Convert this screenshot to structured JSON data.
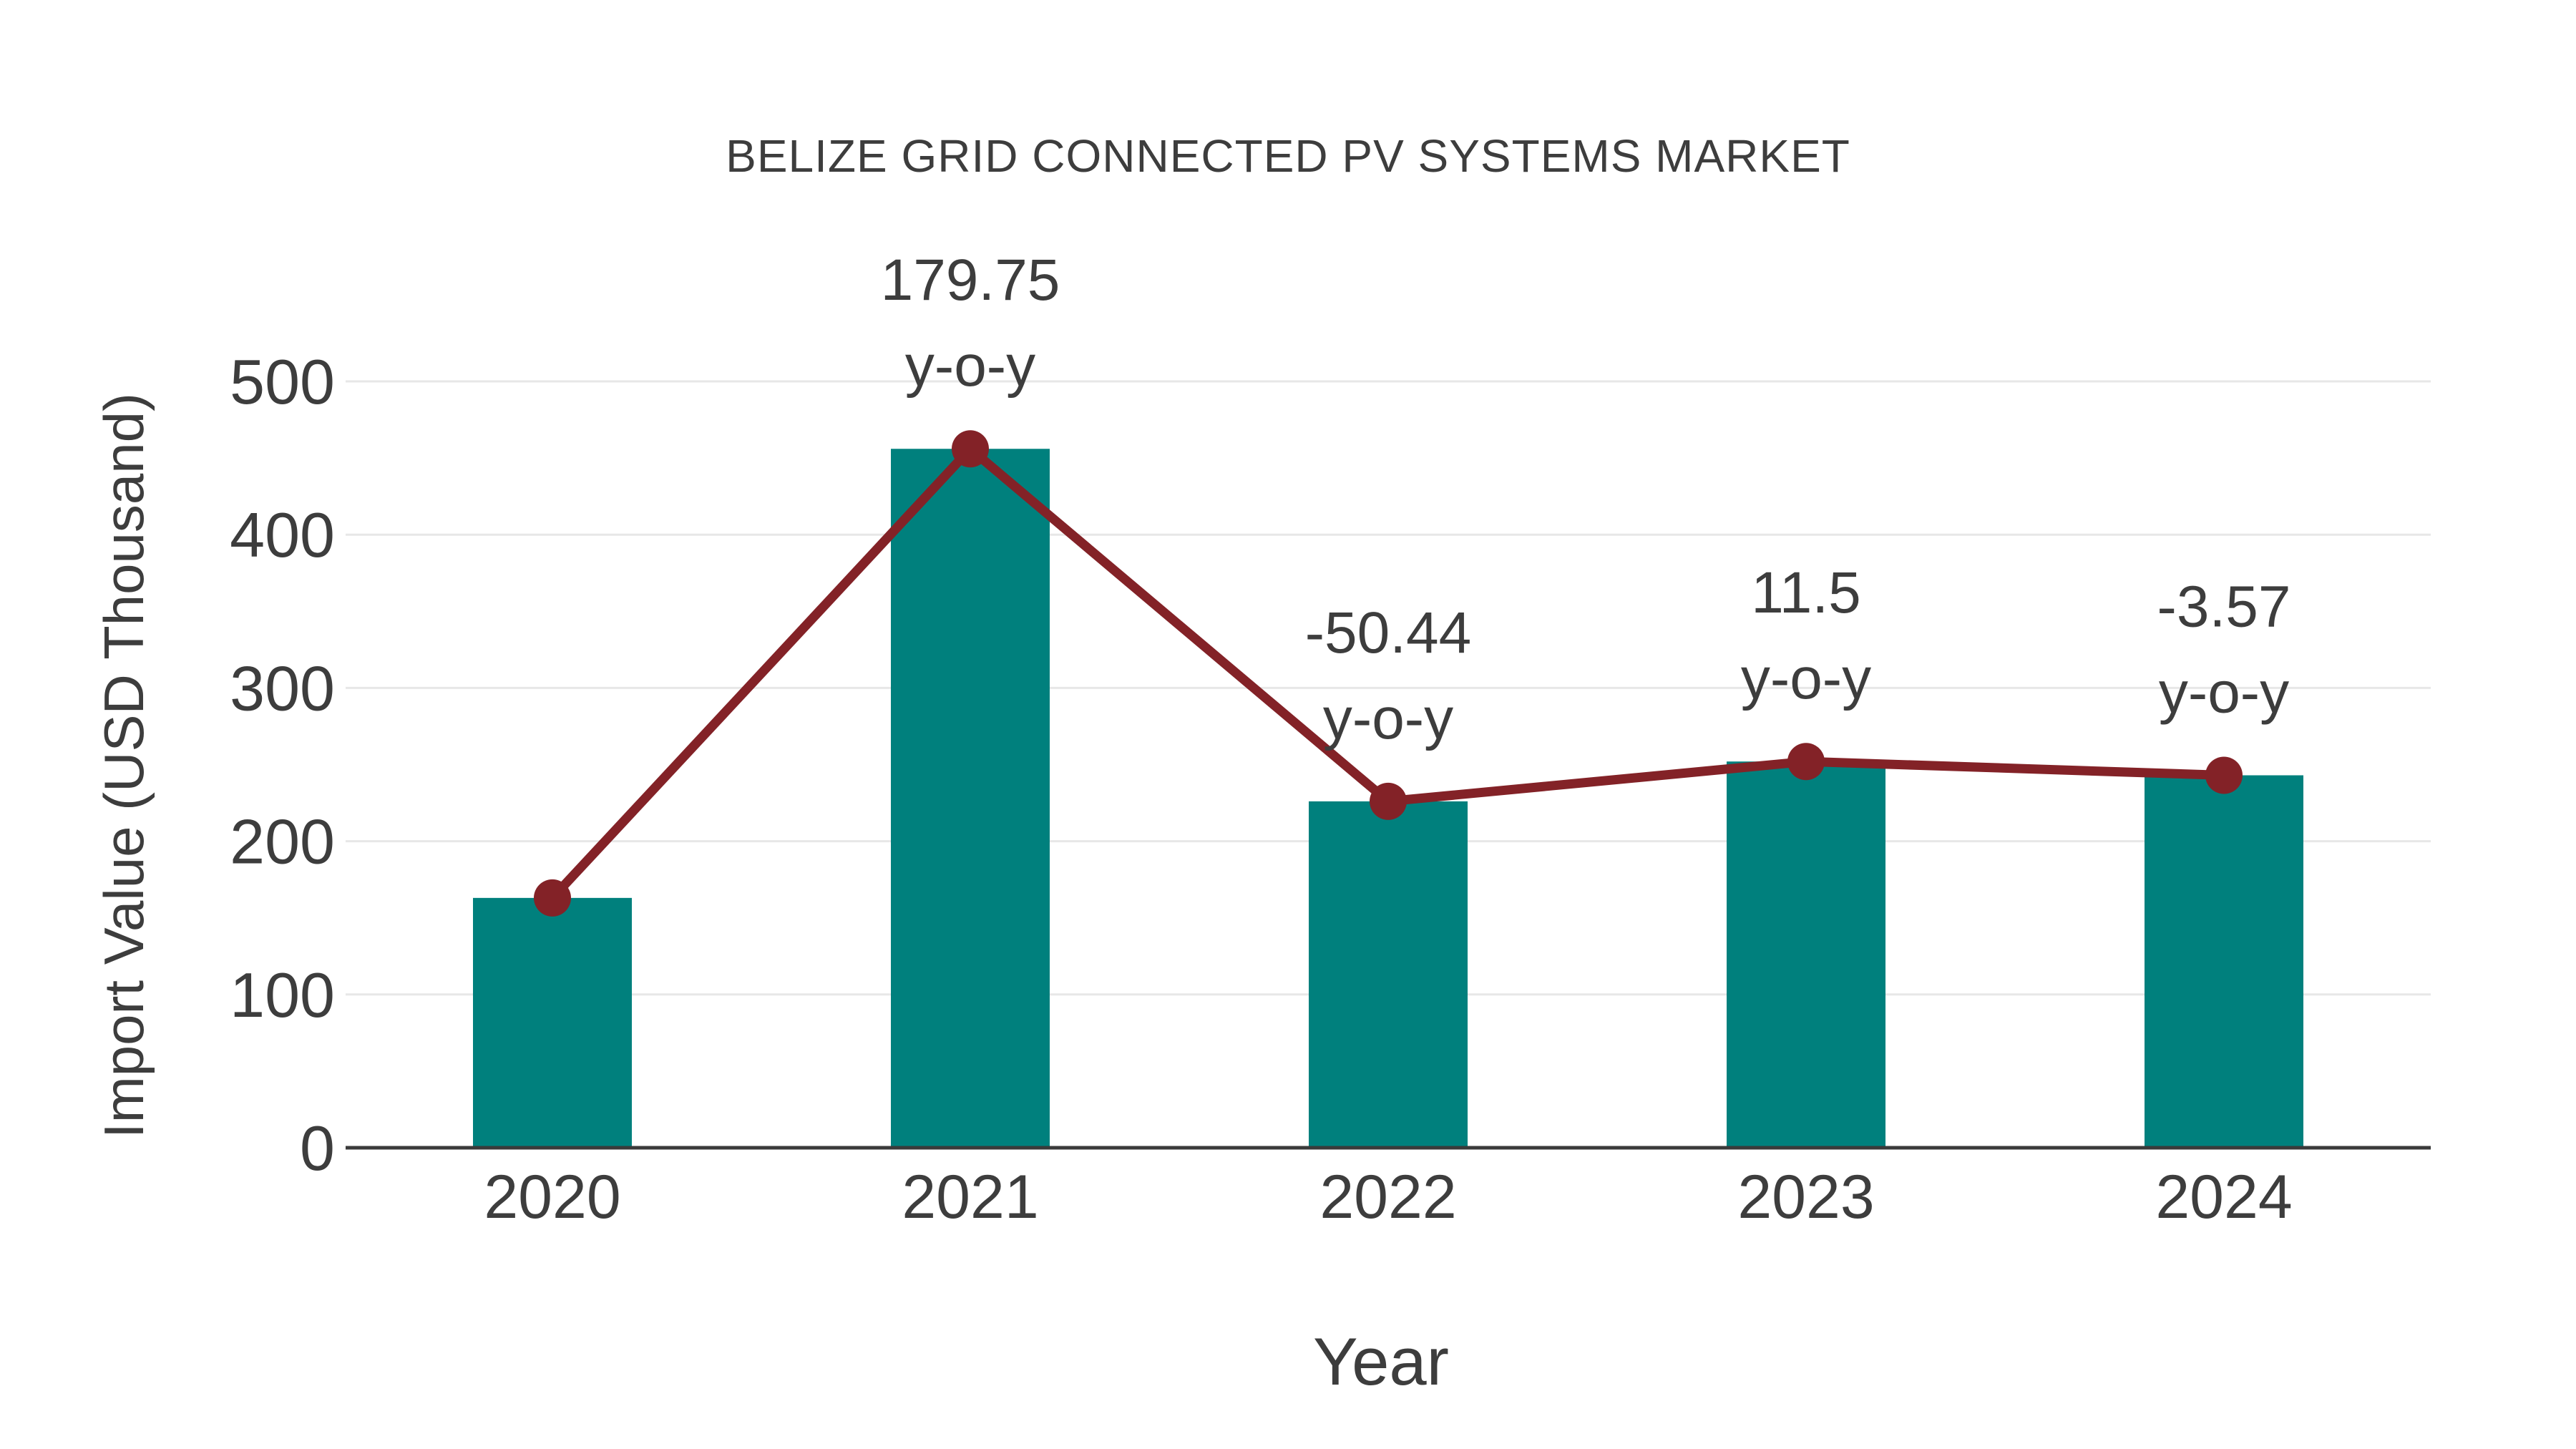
{
  "chart_data": {
    "type": "bar",
    "overlay": "line",
    "title": "BELIZE GRID CONNECTED PV SYSTEMS MARKET",
    "xlabel": "Year",
    "ylabel": "Import Value (USD Thousand)",
    "categories": [
      "2020",
      "2021",
      "2022",
      "2023",
      "2024"
    ],
    "series": [
      {
        "name": "Import Value bars",
        "type": "bar",
        "values": [
          163,
          456,
          226,
          252,
          243
        ]
      },
      {
        "name": "Import Value trend line",
        "type": "line",
        "values": [
          163,
          456,
          226,
          252,
          243
        ]
      }
    ],
    "annotations": [
      {
        "category": "2021",
        "value_label": "179.75",
        "suffix_label": "y-o-y"
      },
      {
        "category": "2022",
        "value_label": "-50.44",
        "suffix_label": "y-o-y"
      },
      {
        "category": "2023",
        "value_label": "11.5",
        "suffix_label": "y-o-y"
      },
      {
        "category": "2024",
        "value_label": "-3.57",
        "suffix_label": "y-o-y"
      }
    ],
    "ylim": [
      0,
      500
    ],
    "yticks": [
      "0",
      "100",
      "200",
      "300",
      "400",
      "500"
    ],
    "grid": true,
    "legend": "none",
    "colors": {
      "bar": "#00807D",
      "line": "#832227",
      "marker": "#832227",
      "text": "#3D3D3D",
      "grid": "#E7E7E7",
      "axis": "#3A3A3A",
      "background": "#FFFFFF"
    }
  }
}
